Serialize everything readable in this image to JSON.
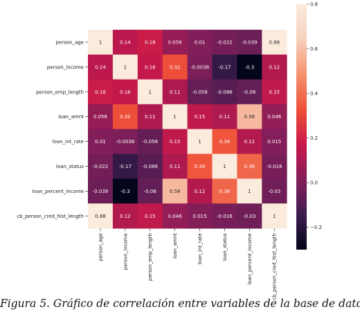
{
  "chart_data": {
    "type": "heatmap",
    "title": "",
    "xlabel": "",
    "ylabel": "",
    "variables": [
      "person_age",
      "person_income",
      "person_emp_length",
      "loan_amnt",
      "loan_int_rate",
      "loan_status",
      "loan_percent_income",
      "cb_person_cred_hist_length"
    ],
    "values": [
      [
        1,
        0.14,
        0.18,
        0.056,
        0.01,
        -0.022,
        -0.039,
        0.88
      ],
      [
        0.14,
        1,
        0.16,
        0.32,
        -0.0038,
        -0.17,
        -0.3,
        0.12
      ],
      [
        0.18,
        0.16,
        1,
        0.11,
        -0.058,
        -0.086,
        -0.06,
        0.15
      ],
      [
        0.056,
        0.32,
        0.11,
        1,
        0.15,
        0.11,
        0.58,
        0.046
      ],
      [
        0.01,
        -0.0038,
        -0.058,
        0.15,
        1,
        0.34,
        0.12,
        0.015
      ],
      [
        -0.022,
        -0.17,
        -0.086,
        0.11,
        0.34,
        1,
        0.38,
        -0.016
      ],
      [
        -0.039,
        -0.3,
        -0.06,
        0.58,
        0.12,
        0.38,
        1,
        -0.03
      ],
      [
        0.88,
        0.12,
        0.15,
        0.046,
        0.015,
        -0.016,
        -0.03,
        1
      ]
    ],
    "colorbar": {
      "min": -0.3,
      "max": 0.8,
      "ticks": [
        -0.2,
        0.0,
        0.2,
        0.4,
        0.6,
        0.8
      ],
      "tick_labels": [
        "−0.2",
        "0.0",
        "0.2",
        "0.4",
        "0.6",
        "0.8"
      ],
      "colormap": "rocket",
      "colormap_stops": [
        "#03051a",
        "#3e1d4f",
        "#841e5a",
        "#c9184a",
        "#ee5138",
        "#f5926f",
        "#f7d1bd",
        "#faebdd"
      ]
    },
    "annotations": true,
    "grid": false
  },
  "caption": "Figura 5. Gráfico de correlación entre variables de la base de datos"
}
